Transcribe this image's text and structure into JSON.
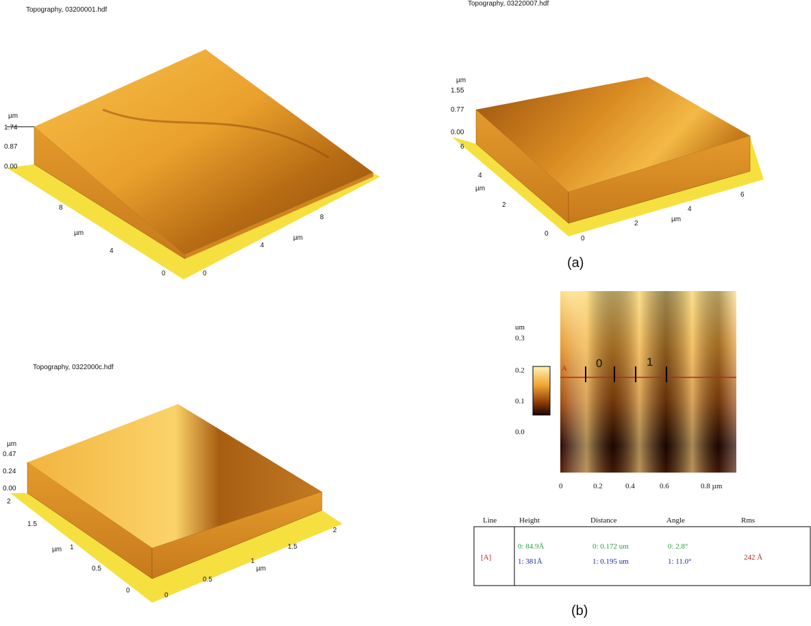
{
  "panels": [
    {
      "title": "Topography, 03200001.hdf",
      "z_unit": "µm",
      "z_ticks": [
        "1.74",
        "0.87",
        "0.00"
      ],
      "y_ticks": [
        "8",
        "4",
        "0"
      ],
      "y_label": "µm",
      "x_ticks": [
        "0",
        "4",
        "8"
      ],
      "x_label": "µm"
    },
    {
      "title": "Topography, 03220007.hdf",
      "z_unit": "µm",
      "z_ticks": [
        "1.55",
        "0.77",
        "0.00"
      ],
      "y_ticks": [
        "6",
        "4",
        "2",
        "0"
      ],
      "y_label": "µm",
      "x_ticks": [
        "0",
        "2",
        "4",
        "6"
      ],
      "x_label": "µm"
    },
    {
      "title": "Topography, 0322000c.hdf",
      "z_unit": "µm",
      "z_ticks": [
        "0.47",
        "0.24",
        "0.00"
      ],
      "y_ticks": [
        "2",
        "1.5",
        "1",
        "0.5",
        "0"
      ],
      "y_label": "µm",
      "x_ticks": [
        "0",
        "0.5",
        "1",
        "1.5",
        "2"
      ],
      "x_label": "µm"
    }
  ],
  "captions": [
    "(a)",
    "(b)"
  ],
  "profile": {
    "unit": "um",
    "y_ticks": [
      "0.3",
      "0.2",
      "0.1",
      "0.0"
    ],
    "x_ticks": [
      "0",
      "0.2",
      "0.4",
      "0.6",
      "0.8 µm"
    ],
    "cursors": [
      "0",
      "1"
    ],
    "line_marks": [
      "A"
    ]
  },
  "table": {
    "headers": [
      "Line",
      "Height",
      "Distance",
      "Angle",
      "Rms"
    ],
    "row": {
      "line": "[A]",
      "height": [
        "0: 84.9Å",
        "1: 381Å"
      ],
      "distance": [
        "0: 0.172 um",
        "1: 0.195 um"
      ],
      "angle": [
        "0: 2.8°",
        "1: 11.0°"
      ],
      "rms": "242 Å"
    }
  }
}
